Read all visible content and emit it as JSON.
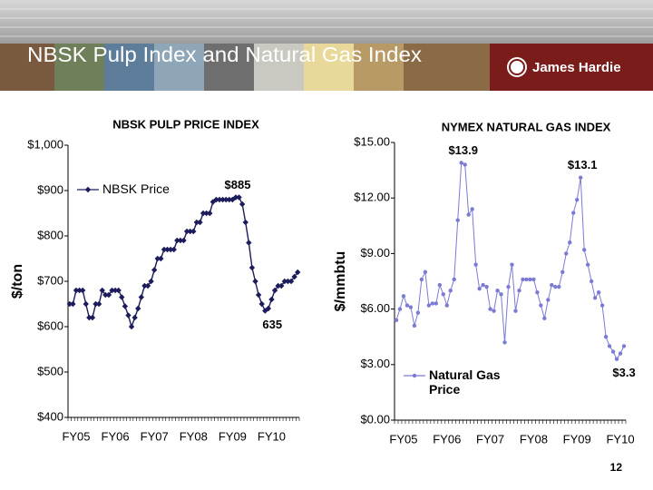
{
  "slide": {
    "title": "NBSK Pulp Index and Natural Gas Index",
    "logo": "James Hardie",
    "page_number": "12"
  },
  "chart_data": [
    {
      "type": "line",
      "title": "NBSK PULP PRICE INDEX",
      "y_label": "$/ton",
      "categories": [
        null,
        null,
        "FY05",
        null,
        null,
        null,
        null,
        null,
        null,
        null,
        null,
        null,
        null,
        null,
        "FY06",
        null,
        null,
        null,
        null,
        null,
        null,
        null,
        null,
        null,
        null,
        null,
        "FY07",
        null,
        null,
        null,
        null,
        null,
        null,
        null,
        null,
        null,
        null,
        null,
        "FY08",
        null,
        null,
        null,
        null,
        null,
        null,
        null,
        null,
        null,
        null,
        null,
        "FY09",
        null,
        null,
        null,
        null,
        null,
        null,
        null,
        null,
        null,
        null,
        null,
        "FY10",
        null,
        null,
        null,
        null,
        null,
        null,
        null,
        null
      ],
      "series": [
        {
          "name": "NBSK Price",
          "color": "#1c1c5c",
          "marker": "diamond",
          "values": [
            650,
            650,
            680,
            680,
            680,
            650,
            620,
            620,
            650,
            650,
            680,
            670,
            670,
            680,
            680,
            680,
            665,
            645,
            625,
            600,
            620,
            640,
            665,
            690,
            690,
            700,
            725,
            750,
            750,
            770,
            770,
            770,
            770,
            790,
            790,
            790,
            810,
            810,
            810,
            830,
            830,
            850,
            850,
            850,
            875,
            880,
            880,
            880,
            880,
            880,
            880,
            885,
            885,
            870,
            830,
            785,
            730,
            700,
            670,
            650,
            635,
            640,
            660,
            680,
            690,
            690,
            700,
            700,
            700,
            710,
            720
          ],
          "value_labels": [
            null,
            null,
            null,
            null,
            null,
            null,
            null,
            null,
            null,
            null,
            null,
            null,
            null,
            null,
            null,
            null,
            null,
            null,
            null,
            null,
            null,
            null,
            null,
            null,
            null,
            null,
            null,
            null,
            null,
            null,
            null,
            null,
            null,
            null,
            null,
            null,
            null,
            null,
            null,
            null,
            null,
            null,
            null,
            null,
            null,
            null,
            null,
            null,
            null,
            null,
            null,
            "$885",
            null,
            null,
            null,
            null,
            null,
            null,
            null,
            null,
            "635",
            null,
            null,
            null,
            null,
            null,
            null,
            null,
            null,
            null,
            null
          ]
        }
      ],
      "ylim": [
        400,
        1000
      ],
      "yticks": [
        {
          "value": 400,
          "label": "$400"
        },
        {
          "value": 500,
          "label": "$500"
        },
        {
          "value": 600,
          "label": "$600"
        },
        {
          "value": 700,
          "label": "$700"
        },
        {
          "value": 800,
          "label": "$800"
        },
        {
          "value": 900,
          "label": "$900"
        },
        {
          "value": 1000,
          "label": "$1,000"
        }
      ],
      "grid": false,
      "legend": "upper left"
    },
    {
      "type": "line",
      "title": "NYMEX NATURAL GAS INDEX",
      "y_label": "$/mmbtu",
      "categories": [
        null,
        null,
        "FY05",
        null,
        null,
        null,
        null,
        null,
        null,
        null,
        null,
        null,
        null,
        null,
        "FY06",
        null,
        null,
        null,
        null,
        null,
        null,
        null,
        null,
        null,
        null,
        null,
        "FY07",
        null,
        null,
        null,
        null,
        null,
        null,
        null,
        null,
        null,
        null,
        null,
        "FY08",
        null,
        null,
        null,
        null,
        null,
        null,
        null,
        null,
        null,
        null,
        null,
        "FY09",
        null,
        null,
        null,
        null,
        null,
        null,
        null,
        null,
        null,
        null,
        null,
        "FY10",
        null
      ],
      "series": [
        {
          "name": "Natural Gas Price",
          "color": "#7b7bd6",
          "marker": "circle",
          "values": [
            5.4,
            6.0,
            6.7,
            6.2,
            6.1,
            5.1,
            5.8,
            7.6,
            8.0,
            6.2,
            6.3,
            6.3,
            7.3,
            6.8,
            6.2,
            7.0,
            7.6,
            10.8,
            13.9,
            13.8,
            11.1,
            11.4,
            8.4,
            7.1,
            7.3,
            7.2,
            6.0,
            5.9,
            7.0,
            6.8,
            4.2,
            7.2,
            8.4,
            5.9,
            7.0,
            7.6,
            7.6,
            7.6,
            7.6,
            6.9,
            6.2,
            5.5,
            6.5,
            7.3,
            7.2,
            7.2,
            8.0,
            9.0,
            9.6,
            11.2,
            11.9,
            13.1,
            9.2,
            8.4,
            7.5,
            6.6,
            6.9,
            6.2,
            4.5,
            4.0,
            3.7,
            3.3,
            3.6,
            4.0
          ],
          "value_labels": [
            null,
            null,
            null,
            null,
            null,
            null,
            null,
            null,
            null,
            null,
            null,
            null,
            null,
            null,
            null,
            null,
            null,
            null,
            "$13.9",
            null,
            null,
            null,
            null,
            null,
            null,
            null,
            null,
            null,
            null,
            null,
            null,
            null,
            null,
            null,
            null,
            null,
            null,
            null,
            null,
            null,
            null,
            null,
            null,
            null,
            null,
            null,
            null,
            null,
            null,
            null,
            null,
            "$13.1",
            null,
            null,
            null,
            null,
            null,
            null,
            null,
            null,
            null,
            "$3.3",
            null,
            null
          ]
        }
      ],
      "ylim": [
        0,
        15
      ],
      "yticks": [
        {
          "value": 0,
          "label": "$0.00"
        },
        {
          "value": 3,
          "label": "$3.00"
        },
        {
          "value": 6,
          "label": "$6.00"
        },
        {
          "value": 9,
          "label": "$9.00"
        },
        {
          "value": 12,
          "label": "$12.00"
        },
        {
          "value": 15,
          "label": "$15.00"
        }
      ],
      "grid": false,
      "legend": "lower left"
    }
  ]
}
